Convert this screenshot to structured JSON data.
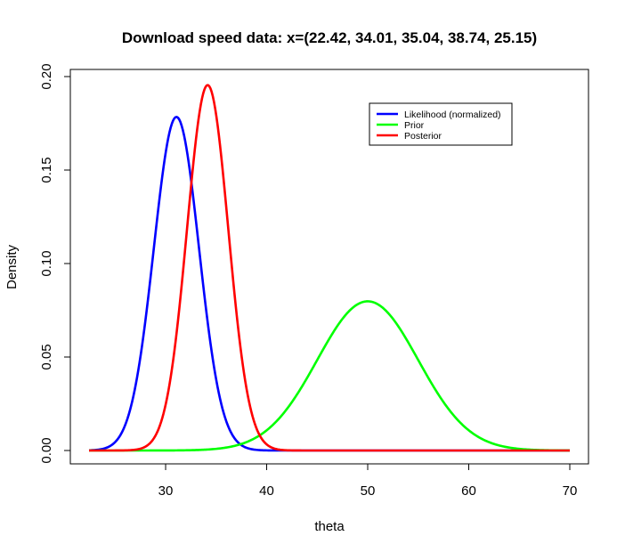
{
  "chart_data": {
    "type": "line",
    "title": "Download speed data: x=(22.42, 34.01, 35.04, 38.74, 25.15)",
    "xlabel": "theta",
    "ylabel": "Density",
    "xlim": [
      22.42,
      70
    ],
    "ylim": [
      0,
      0.2
    ],
    "xticks": [
      30,
      40,
      50,
      60,
      70
    ],
    "yticks": [
      0.0,
      0.05,
      0.1,
      0.15,
      0.2
    ],
    "xtick_labels": [
      "30",
      "40",
      "50",
      "60",
      "70"
    ],
    "ytick_labels": [
      "0.00",
      "0.05",
      "0.10",
      "0.15",
      "0.20"
    ],
    "legend_position": "top-right",
    "series": [
      {
        "name": "Likelihood (normalized)",
        "color": "#0000ff",
        "distribution": "normal",
        "mean": 31.07,
        "sd": 2.236
      },
      {
        "name": "Prior",
        "color": "#00ff00",
        "distribution": "normal",
        "mean": 50,
        "sd": 5
      },
      {
        "name": "Posterior",
        "color": "#ff0000",
        "distribution": "normal",
        "mean": 34.16,
        "sd": 2.041
      }
    ]
  }
}
